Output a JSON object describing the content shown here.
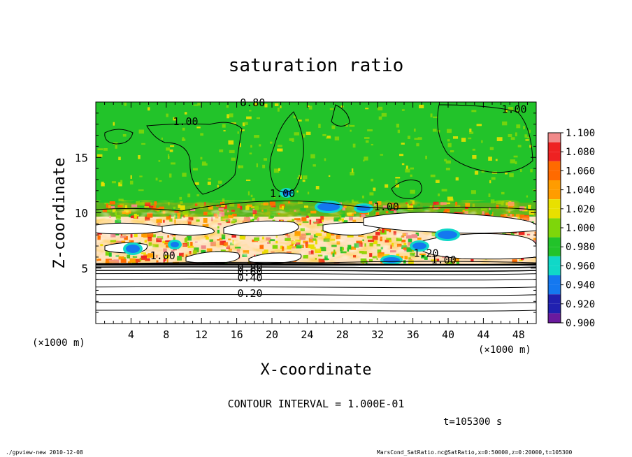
{
  "chart_data": {
    "type": "heatmap",
    "title": "saturation ratio",
    "xlabel": "X-coordinate",
    "ylabel": "Z-coordinate",
    "x_unit": "(×1000 m)",
    "z_unit": "(×1000 m)",
    "xlim": [
      0,
      50
    ],
    "ylim": [
      0,
      20
    ],
    "x_ticks": [
      4,
      8,
      12,
      16,
      20,
      24,
      28,
      32,
      36,
      40,
      44,
      48
    ],
    "y_ticks": [
      5,
      10,
      15
    ],
    "colorbar": {
      "levels": [
        "1.100",
        "1.080",
        "1.060",
        "1.040",
        "1.020",
        "1.000",
        "0.980",
        "0.960",
        "0.940",
        "0.920",
        "0.900"
      ],
      "colors": [
        "#f08a8a",
        "#ee2222",
        "#ff6a00",
        "#ff9c00",
        "#e8e000",
        "#7ed60a",
        "#22c32a",
        "#10d8c8",
        "#1478f0",
        "#2020b0",
        "#6a1a9e"
      ],
      "above_color": "#ffffff"
    },
    "contour_labels": [
      {
        "text": "0.20",
        "x": 17.5,
        "z": 2.6
      },
      {
        "text": "0.40",
        "x": 17.5,
        "z": 4.0
      },
      {
        "text": "0.60",
        "x": 17.5,
        "z": 4.5
      },
      {
        "text": "0.80",
        "x": 17.5,
        "z": 4.9
      },
      {
        "text": "1.00",
        "x": 10.2,
        "z": 18.1
      },
      {
        "text": "1.00",
        "x": 7.6,
        "z": 6.0
      },
      {
        "text": "1.00",
        "x": 33.0,
        "z": 10.4
      },
      {
        "text": "1.00",
        "x": 39.5,
        "z": 5.6
      },
      {
        "text": "1.00",
        "x": 47.5,
        "z": 19.2
      },
      {
        "text": "1.20",
        "x": 37.5,
        "z": 6.2
      },
      {
        "text": "0.80",
        "x": 17.8,
        "z": 19.8
      },
      {
        "text": "1.00",
        "x": 21.2,
        "z": 11.6
      }
    ],
    "contour_interval": "CONTOUR INTERVAL = 1.000E-01",
    "time": "t=105300 s"
  },
  "footer": {
    "left": "./gpview-new  2010-12-08",
    "right": "MarsCond_SatRatio.nc@SatRatio,x=0:50000,z=0:20000,t=105300"
  }
}
